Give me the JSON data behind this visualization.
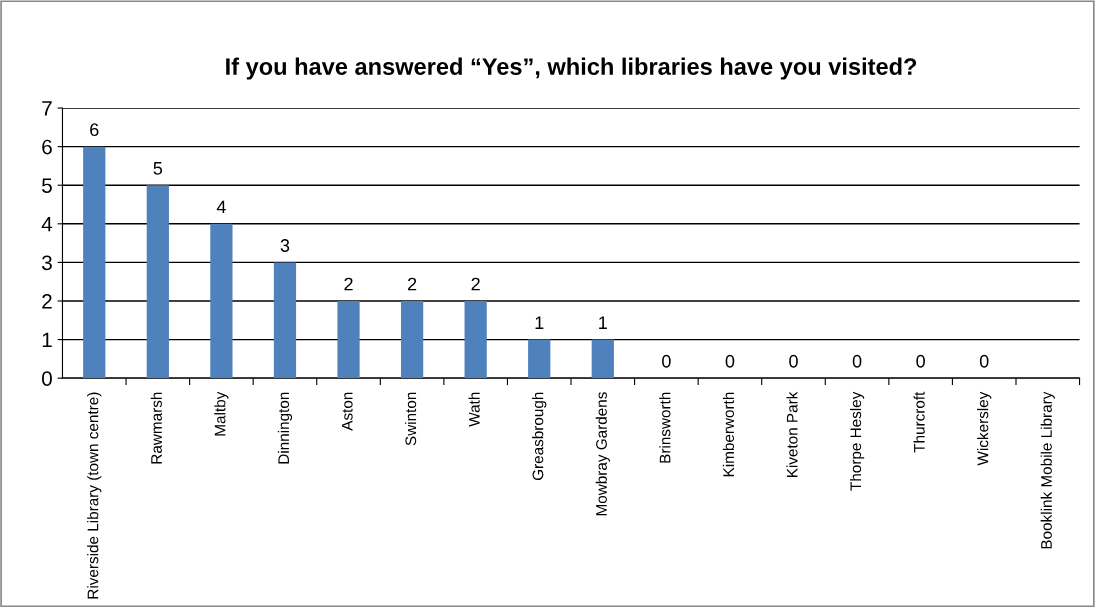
{
  "chart_data": {
    "type": "bar",
    "title": "If you have answered “Yes”, which libraries have you visited?",
    "categories": [
      "Riverside Library (town centre)",
      "Rawmarsh",
      "Maltby",
      "Dinnington",
      "Aston",
      "Swinton",
      "Wath",
      "Greasbrough",
      "Mowbray Gardens",
      "Brinsworth",
      "Kimberworth",
      "Kiveton Park",
      "Thorpe Hesley",
      "Thurcroft",
      "Wickersley",
      "Booklink Mobile Library"
    ],
    "values": [
      6,
      5,
      4,
      3,
      2,
      2,
      2,
      1,
      1,
      0,
      0,
      0,
      0,
      0,
      0,
      null
    ],
    "value_labels": [
      "6",
      "5",
      "4",
      "3",
      "2",
      "2",
      "2",
      "1",
      "1",
      "0",
      "0",
      "0",
      "0",
      "0",
      "0",
      null
    ],
    "color": "#4f81bd",
    "ylim": [
      0,
      7
    ],
    "yticks": [
      0,
      1,
      2,
      3,
      4,
      5,
      6,
      7
    ],
    "grid": "y"
  }
}
